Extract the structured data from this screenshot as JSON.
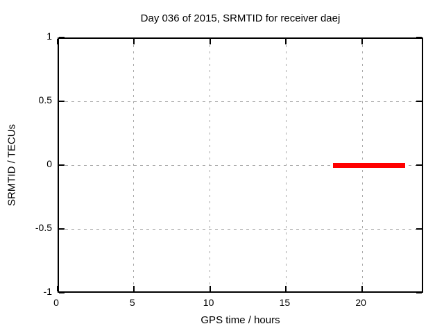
{
  "chart_data": {
    "type": "line",
    "title": "Day 036 of 2015, SRMTID for receiver daej",
    "xlabel": "GPS time / hours",
    "ylabel": "SRMTID / TECUs",
    "xlim": [
      0,
      24
    ],
    "ylim": [
      -1,
      1
    ],
    "xticks": [
      0,
      5,
      10,
      15,
      20
    ],
    "yticks": [
      -1,
      -0.5,
      0,
      0.5,
      1
    ],
    "grid": true,
    "legend": "none",
    "series": [
      {
        "name": "SRMTID",
        "color": "#ff0000",
        "style": "thick-horizontal-segment",
        "x_start": 18.1,
        "x_end": 22.8,
        "y": 0
      }
    ]
  },
  "colors": {
    "background": "#ffffff",
    "border": "#000000",
    "grid": "#a9a9a9",
    "series": "#ff0000"
  }
}
